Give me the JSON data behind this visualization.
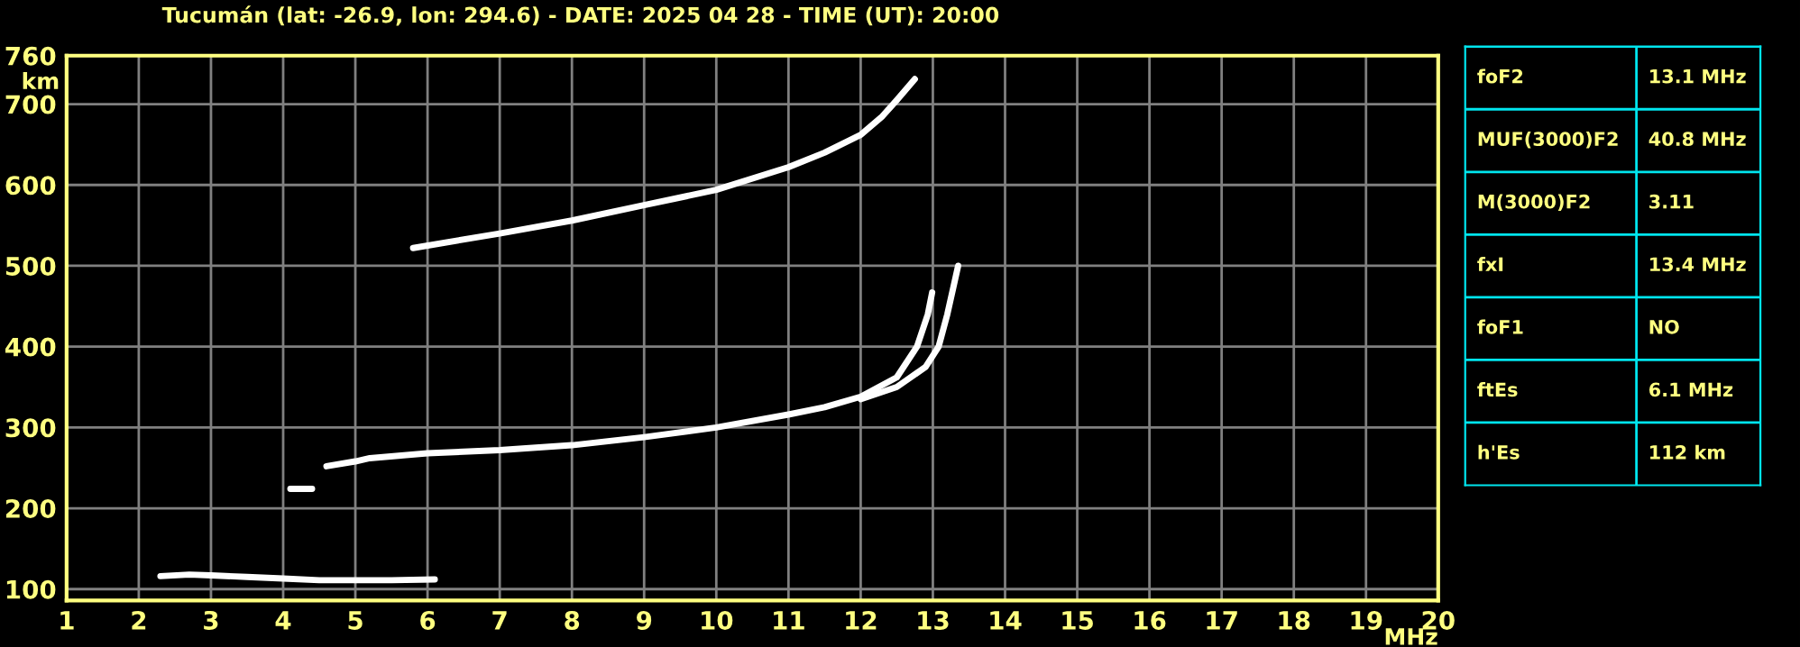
{
  "chart_data": [
    {
      "type": "line",
      "title": "Tucumán (lat: -26.9, lon: 294.6) - DATE: 2025 04 28 - TIME (UT): 20:00",
      "xlabel": "MHz",
      "ylabel": "km",
      "xlim": [
        1,
        20
      ],
      "ylim": [
        86,
        760
      ],
      "xticks": [
        1,
        2,
        3,
        4,
        5,
        6,
        7,
        8,
        9,
        10,
        11,
        12,
        13,
        14,
        15,
        16,
        17,
        18,
        19,
        20
      ],
      "yticks": [
        100,
        200,
        300,
        400,
        500,
        600,
        700,
        760
      ],
      "grid": true,
      "legend": false,
      "line_style": "solid",
      "marker": "none",
      "series": [
        {
          "color": "#ffffff",
          "x": [
            2.3,
            2.7,
            3.0,
            3.5,
            4.0,
            4.5,
            5.0,
            5.5,
            6.1
          ],
          "values": [
            116,
            118,
            117,
            115,
            113,
            111,
            111,
            111,
            112
          ]
        },
        {
          "color": "#ffffff",
          "x": [
            4.1,
            4.4,
            4.5,
            4.6,
            5.0,
            5.2,
            6.0,
            7.0,
            8.0,
            9.0,
            10.0,
            11.0,
            11.5,
            12.0,
            12.5,
            12.78,
            12.93,
            12.99
          ],
          "values": [
            224,
            224,
            null,
            252,
            258,
            262,
            268,
            272,
            278,
            288,
            300,
            316,
            325,
            338,
            362,
            400,
            440,
            467
          ]
        },
        {
          "color": "#ffffff",
          "x": [
            12.0,
            12.5,
            12.9,
            13.08,
            13.2,
            13.3,
            13.35
          ],
          "values": [
            335,
            350,
            375,
            400,
            440,
            480,
            500
          ]
        },
        {
          "color": "#ffffff",
          "x": [
            5.8,
            7.0,
            8.0,
            9.0,
            10.0,
            11.0,
            11.5,
            12.0,
            12.3,
            12.5,
            12.75
          ],
          "values": [
            522,
            540,
            556,
            575,
            594,
            622,
            640,
            662,
            685,
            705,
            731
          ]
        }
      ]
    },
    {
      "type": "other",
      "annotations": [
        "foF2",
        "13.1 MHz",
        "MUF(3000)F2",
        "40.8 MHz",
        "M(3000)F2",
        "3.11",
        "fxI",
        "13.4 MHz",
        "foF1",
        "NO",
        "ftEs",
        "6.1 MHz",
        "h'Es",
        "112 km"
      ]
    }
  ]
}
